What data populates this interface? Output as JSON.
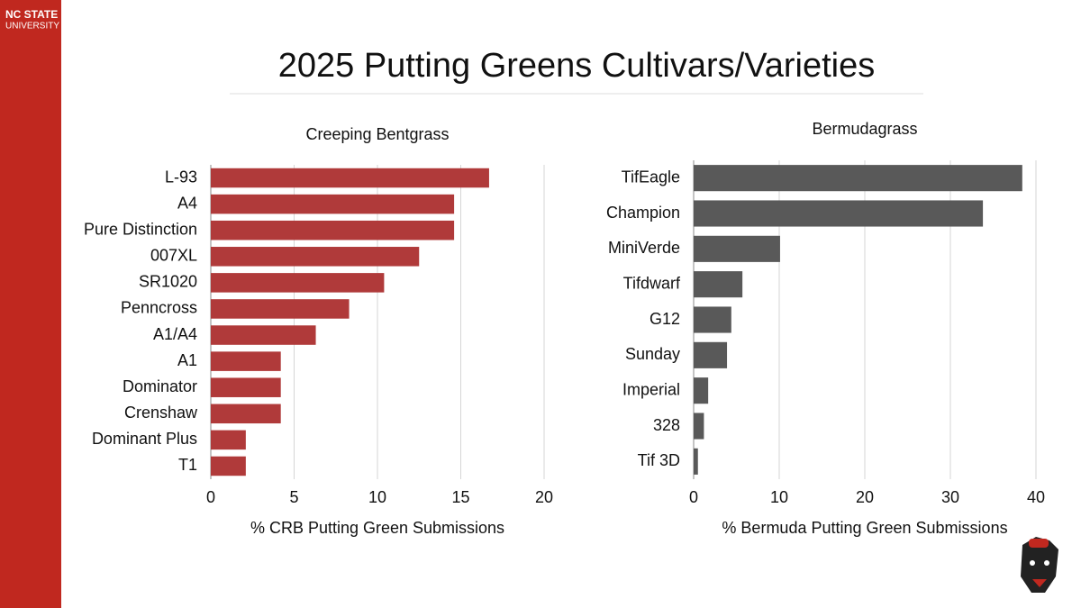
{
  "header": {
    "title": "2025 Putting Greens Cultivars/Varieties",
    "logo_line1": "NC STATE",
    "logo_line2": "UNIVERSITY"
  },
  "chart_data": [
    {
      "type": "bar",
      "orientation": "horizontal",
      "title": "Creeping Bentgrass",
      "x_label": "% CRB Putting Green Submissions",
      "categories": [
        "L-93",
        "A4",
        "Pure Distinction",
        "007XL",
        "SR1020",
        "Penncross",
        "A1/A4",
        "A1",
        "Dominator",
        "Crenshaw",
        "Dominant Plus",
        "T1"
      ],
      "values": [
        16.7,
        14.6,
        14.6,
        12.5,
        10.4,
        8.3,
        6.3,
        4.2,
        4.2,
        4.2,
        2.1,
        2.1
      ],
      "color": "#b03a3a",
      "xlim": [
        0,
        20
      ],
      "xticks": [
        0,
        5,
        10,
        15,
        20
      ],
      "grid": true
    },
    {
      "type": "bar",
      "orientation": "horizontal",
      "title": "Bermudagrass",
      "x_label": "% Bermuda Putting Green Submissions",
      "categories": [
        "TifEagle",
        "Champion",
        "MiniVerde",
        "Tifdwarf",
        "G12",
        "Sunday",
        "Imperial",
        "328",
        "Tif 3D"
      ],
      "values": [
        38.4,
        33.8,
        10.1,
        5.7,
        4.4,
        3.9,
        1.7,
        1.2,
        0.5
      ],
      "color": "#595959",
      "xlim": [
        0,
        40
      ],
      "xticks": [
        0,
        10,
        20,
        30,
        40
      ],
      "grid": true
    }
  ]
}
